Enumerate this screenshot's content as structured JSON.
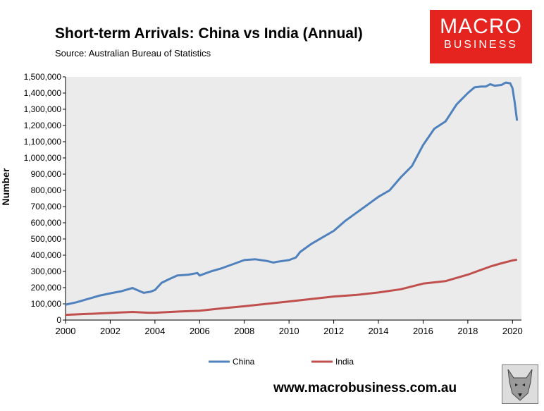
{
  "header": {
    "title": "Short-term Arrivals: China vs India (Annual)",
    "source": "Source: Australian Bureau of Statistics"
  },
  "logo": {
    "line1": "MACRO",
    "line2": "BUSINESS",
    "color": "#e52420"
  },
  "footer": {
    "url": "www.macrobusiness.com.au"
  },
  "colors": {
    "plot_bg": "#ebebeb",
    "china": "#4f81bd",
    "india": "#c0504d"
  },
  "chart_data": {
    "type": "line",
    "title": "Short-term Arrivals: China vs India (Annual)",
    "ylabel": "Number",
    "xlabel": "",
    "xlim": [
      2000,
      2020.4
    ],
    "ylim": [
      0,
      1500000
    ],
    "grid": false,
    "legend_position": "bottom",
    "xticks": [
      "2000",
      "2002",
      "2004",
      "2006",
      "2008",
      "2010",
      "2012",
      "2014",
      "2016",
      "2018",
      "2020"
    ],
    "yticks": [
      "0",
      "100,000",
      "200,000",
      "300,000",
      "400,000",
      "500,000",
      "600,000",
      "700,000",
      "800,000",
      "900,000",
      "1,000,000",
      "1,100,000",
      "1,200,000",
      "1,300,000",
      "1,400,000",
      "1,500,000"
    ],
    "series": [
      {
        "name": "China",
        "color": "#4f81bd",
        "x": [
          2000,
          2000.5,
          2001,
          2001.5,
          2002,
          2002.5,
          2003,
          2003.2,
          2003.5,
          2003.8,
          2004,
          2004.3,
          2004.6,
          2005,
          2005.5,
          2005.9,
          2006,
          2006.5,
          2007,
          2007.5,
          2008,
          2008.5,
          2009,
          2009.3,
          2009.5,
          2010,
          2010.3,
          2010.5,
          2011,
          2011.5,
          2012,
          2012.5,
          2013,
          2013.5,
          2014,
          2014.5,
          2015,
          2015.5,
          2016,
          2016.5,
          2017,
          2017.5,
          2018,
          2018.3,
          2018.6,
          2018.8,
          2019,
          2019.2,
          2019.5,
          2019.7,
          2019.9,
          2020,
          2020.1,
          2020.2
        ],
        "values": [
          95000,
          110000,
          130000,
          150000,
          165000,
          178000,
          198000,
          185000,
          168000,
          175000,
          185000,
          230000,
          250000,
          275000,
          280000,
          290000,
          275000,
          300000,
          320000,
          345000,
          370000,
          375000,
          365000,
          355000,
          360000,
          370000,
          385000,
          420000,
          470000,
          510000,
          550000,
          610000,
          660000,
          710000,
          760000,
          800000,
          880000,
          950000,
          1080000,
          1180000,
          1225000,
          1330000,
          1400000,
          1435000,
          1440000,
          1440000,
          1455000,
          1445000,
          1450000,
          1465000,
          1460000,
          1430000,
          1340000,
          1230000
        ]
      },
      {
        "name": "India",
        "color": "#c0504d",
        "x": [
          2000,
          2001,
          2002,
          2003,
          2003.7,
          2004,
          2005,
          2006,
          2007,
          2008,
          2009,
          2010,
          2011,
          2012,
          2013,
          2014,
          2015,
          2016,
          2017,
          2018,
          2019,
          2019.5,
          2020,
          2020.2
        ],
        "values": [
          32000,
          38000,
          44000,
          50000,
          45000,
          45000,
          52000,
          58000,
          72000,
          85000,
          100000,
          115000,
          130000,
          145000,
          155000,
          170000,
          190000,
          225000,
          240000,
          280000,
          330000,
          350000,
          368000,
          372000
        ]
      }
    ]
  }
}
